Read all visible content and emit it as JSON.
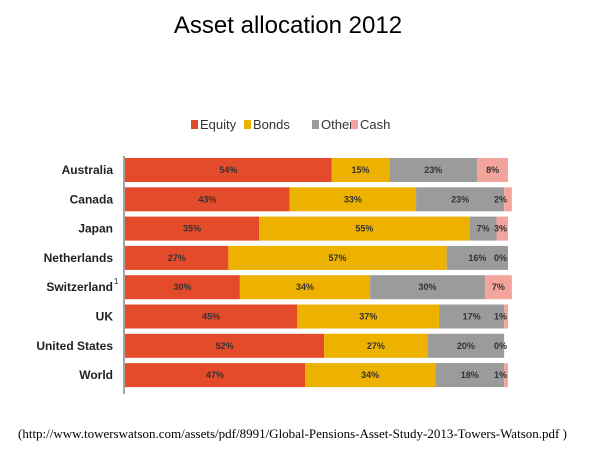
{
  "chart_data": {
    "type": "bar",
    "orientation": "horizontal",
    "stacked": true,
    "title": "Asset allocation 2012",
    "categories": [
      "Australia",
      "Canada",
      "Japan",
      "Netherlands",
      "Switzerland",
      "UK",
      "United States",
      "World"
    ],
    "category_notes": {
      "Switzerland": "1"
    },
    "series": [
      {
        "name": "Equity",
        "color": "#E44B2B",
        "values": [
          54,
          43,
          35,
          27,
          30,
          45,
          52,
          47
        ]
      },
      {
        "name": "Bonds",
        "color": "#EDB100",
        "values": [
          15,
          33,
          55,
          57,
          34,
          37,
          27,
          34
        ]
      },
      {
        "name": "Other",
        "color": "#9B9B9B",
        "values": [
          23,
          23,
          7,
          16,
          30,
          17,
          20,
          18
        ]
      },
      {
        "name": "Cash",
        "color": "#F3A49C",
        "values": [
          8,
          2,
          3,
          0,
          7,
          1,
          0,
          1
        ]
      }
    ],
    "xlim": [
      0,
      100
    ],
    "value_suffix": "%",
    "legend_position": "top"
  },
  "source_text": "(http://www.towerswatson.com/assets/pdf/8991/Global-Pensions-Asset-Study-2013-Towers-Watson.pdf )"
}
